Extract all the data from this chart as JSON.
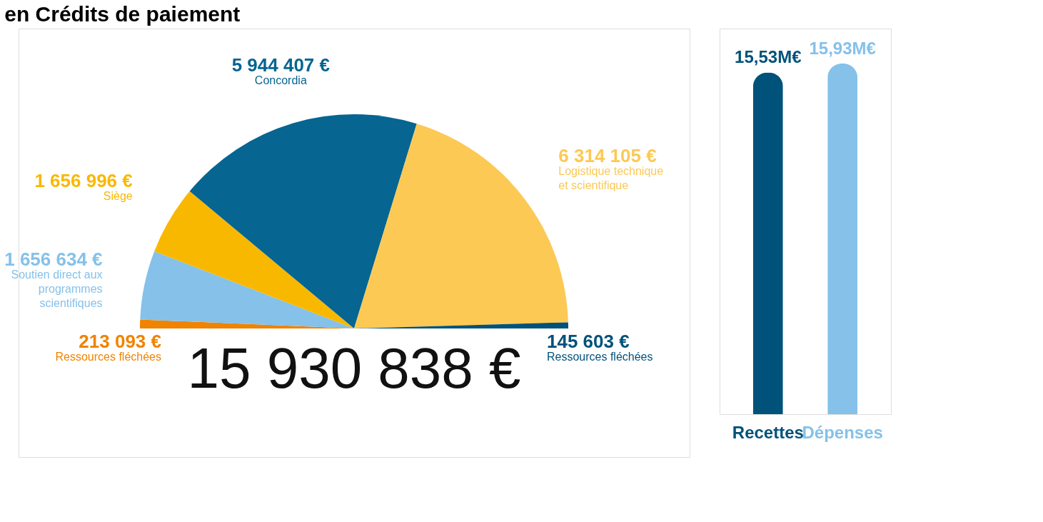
{
  "chart_data": [
    {
      "type": "pie",
      "title": "en Crédits de paiement",
      "categories": [
        "Ressources fléchées",
        "Soutien direct aux programmes scientifiques",
        "Siège",
        "Concordia",
        "Logistique technique et scientifique",
        "Ressources fléchées"
      ],
      "values": [
        213093,
        1656634,
        1656996,
        5944407,
        6314105,
        145603
      ],
      "colors": [
        "#f08300",
        "#85c1e9",
        "#f9b800",
        "#066591",
        "#fcc955",
        "#00527a"
      ],
      "value_labels": [
        "213 093 €",
        "1 656 634 €",
        "1 656 996 €",
        "5 944 407 €",
        "6 314 105 €",
        "145 603 €"
      ],
      "annotations": [
        "15 930 838 €"
      ]
    },
    {
      "type": "bar",
      "categories": [
        "Recettes",
        "Dépenses"
      ],
      "values": [
        15.53,
        15.93
      ],
      "colors": [
        "#00527a",
        "#85c1e9"
      ],
      "value_labels": [
        "15,53M€",
        "15,93M€"
      ]
    }
  ]
}
